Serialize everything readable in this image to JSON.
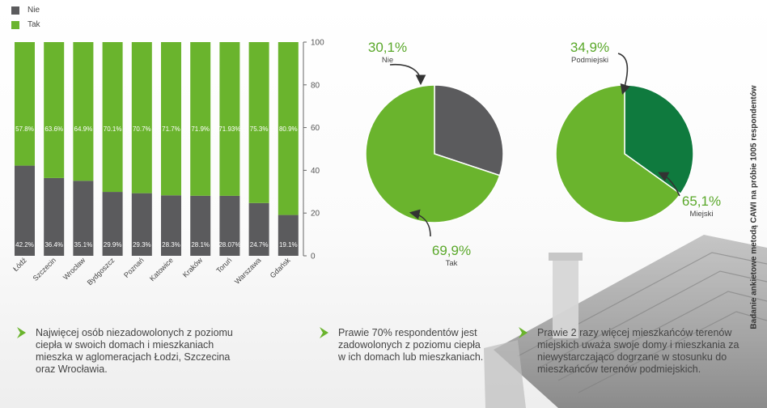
{
  "legend": {
    "no": "Nie",
    "yes": "Tak"
  },
  "colors": {
    "green": "#6ab42d",
    "gray": "#5b5b5d",
    "dark_green": "#0f7a3e",
    "accent": "#5aa82a"
  },
  "chart_data": [
    {
      "type": "bar",
      "stacked": true,
      "categories": [
        "Łódź",
        "Szczecin",
        "Wrocław",
        "Bydgoszcz",
        "Poznań",
        "Katowice",
        "Kraków",
        "Toruń",
        "Warszawa",
        "Gdańsk"
      ],
      "series": [
        {
          "name": "Nie",
          "values": [
            42.2,
            36.4,
            35.1,
            29.9,
            29.3,
            28.3,
            28.1,
            28.07,
            24.7,
            19.1
          ],
          "labels": [
            "42.2%",
            "36.4%",
            "35.1%",
            "29.9%",
            "29.3%",
            "28.3%",
            "28.1%",
            "28.07%",
            "24.7%",
            "19.1%"
          ]
        },
        {
          "name": "Tak",
          "values": [
            57.8,
            63.6,
            64.9,
            70.1,
            70.7,
            71.7,
            71.9,
            71.93,
            75.3,
            80.9
          ],
          "labels": [
            "57.8%",
            "63.6%",
            "64.9%",
            "70.1%",
            "70.7%",
            "71.7%",
            "71.9%",
            "71.93%",
            "75.3%",
            "80.9%"
          ]
        }
      ],
      "ylim": [
        0,
        100
      ],
      "yticks": [
        "0",
        "20",
        "40",
        "60",
        "80",
        "100"
      ],
      "legend_position": "top-left"
    },
    {
      "type": "pie",
      "slices": [
        {
          "label": "Nie",
          "value": 30.1,
          "text": "30,1%"
        },
        {
          "label": "Tak",
          "value": 69.9,
          "text": "69,9%"
        }
      ]
    },
    {
      "type": "pie",
      "slices": [
        {
          "label": "Podmiejski",
          "value": 34.9,
          "text": "34,9%"
        },
        {
          "label": "Miejski",
          "value": 65.1,
          "text": "65,1%"
        }
      ]
    }
  ],
  "notes": [
    {
      "lines": [
        "Najwięcej osób niezadowolonych z poziomu",
        "ciepła w swoich domach i mieszkaniach",
        "mieszka w aglomeracjach Łodzi, Szczecina",
        "oraz Wrocławia."
      ]
    },
    {
      "lines": [
        "Prawie 70% respondentów jest",
        "zadowolonych z poziomu ciepła",
        "w ich domach lub mieszkaniach."
      ]
    },
    {
      "lines": [
        "Prawie 2 razy więcej mieszkańców terenów",
        "miejskich uważa swoje domy i mieszkania za",
        "niewystarczająco dogrzane w stosunku do",
        "mieszkańców terenów podmiejskich."
      ]
    }
  ],
  "side_note": "Badanie ankietowe metodą CAWI na próbie 1005 respondentów"
}
